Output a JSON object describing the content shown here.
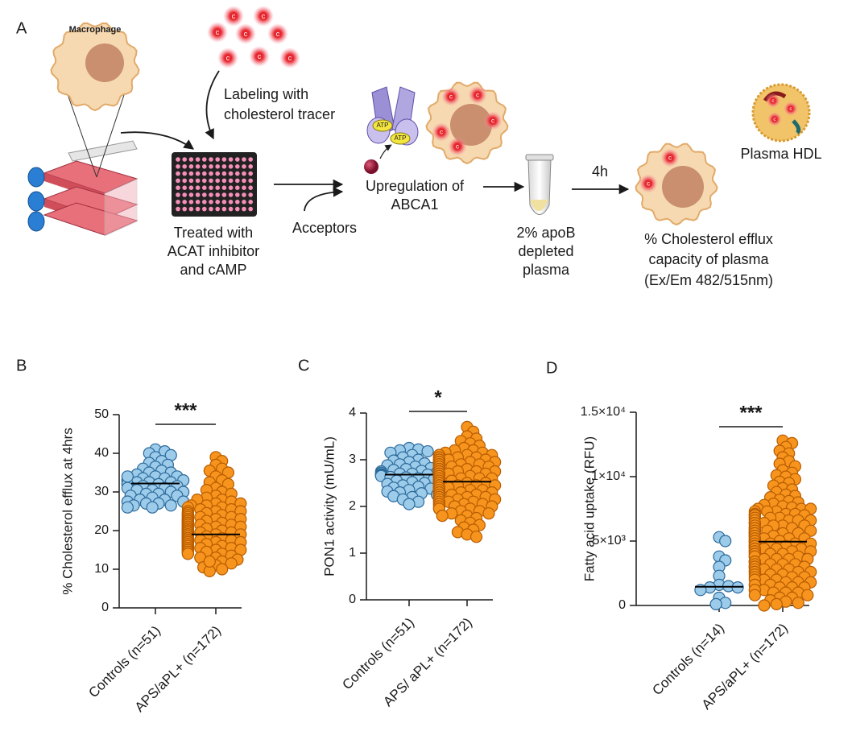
{
  "diagram": {
    "panel_label": "A",
    "macrophage": "Macrophage",
    "tracer_label": "c",
    "labeling": [
      "Labeling with",
      "cholesterol tracer"
    ],
    "treated": [
      "Treated with",
      "ACAT inhibitor",
      "and cAMP"
    ],
    "atp": "ATP",
    "upregulation": [
      "Upregulation of",
      "ABCA1"
    ],
    "acceptors": "Acceptors",
    "plasma": [
      "2% apoB",
      "depleted",
      "plasma"
    ],
    "time": "4h",
    "efflux": [
      "% Cholesterol efflux",
      "capacity of plasma",
      "(Ex/Em 482/515nm)"
    ],
    "hdl": "Plasma HDL"
  },
  "chart_data": [
    {
      "type": "dotplot",
      "panel_label": "B",
      "ylabel": "% Cholesterol efflux at 4hrs",
      "significance": "***",
      "categories": [
        "Controls (n=51)",
        "APS/aPL+ (n=172)"
      ],
      "groups": [
        {
          "color": "#9dcbea",
          "edge": "#2b6a9b",
          "median": 32.2,
          "values": [
            41,
            40.5,
            40,
            39.5,
            39,
            38,
            37.5,
            37,
            36.5,
            36,
            35.5,
            35,
            35,
            34.5,
            34,
            34,
            33.5,
            33.5,
            33,
            33,
            33,
            32.5,
            32.5,
            32.5,
            32,
            32,
            32,
            31.5,
            31.5,
            31,
            31,
            30.5,
            30.5,
            30,
            30,
            29.5,
            29.5,
            29,
            29,
            28.5,
            28,
            28,
            27.5,
            27.5,
            27,
            27,
            26.5,
            26.5,
            26,
            26,
            34
          ]
        },
        {
          "color": "#f7941d",
          "edge": "#b85c00",
          "median": 19,
          "values": [
            39,
            38,
            37,
            36,
            35.5,
            35,
            34,
            33,
            32.5,
            32,
            31,
            30.5,
            30,
            29.5,
            29,
            28.5,
            28,
            28,
            27.5,
            27,
            27,
            26.5,
            26.5,
            26,
            26,
            25.5,
            25.5,
            25,
            25,
            25,
            24.5,
            24.5,
            24.5,
            24,
            24,
            24,
            24,
            23.5,
            23.5,
            23.5,
            23.5,
            23,
            23,
            23,
            23,
            23,
            22.5,
            22.5,
            22.5,
            22.5,
            22.5,
            22,
            22,
            22,
            22,
            22,
            22,
            21.5,
            21.5,
            21.5,
            21.5,
            21.5,
            21.5,
            21,
            21,
            21,
            21,
            21,
            21,
            21,
            20.5,
            20.5,
            20.5,
            20.5,
            20.5,
            20.5,
            20.5,
            20,
            20,
            20,
            20,
            20,
            20,
            20,
            20,
            19.5,
            19.5,
            19.5,
            19.5,
            19.5,
            19.5,
            19.5,
            19.5,
            19,
            19,
            19,
            19,
            19,
            19,
            19,
            19,
            19,
            18.5,
            18.5,
            18.5,
            18.5,
            18.5,
            18.5,
            18.5,
            18.5,
            18,
            18,
            18,
            18,
            18,
            18,
            18,
            18,
            17.5,
            17.5,
            17.5,
            17.5,
            17.5,
            17.5,
            17.5,
            17,
            17,
            17,
            17,
            17,
            17,
            17,
            16.5,
            16.5,
            16.5,
            16.5,
            16.5,
            16.5,
            16,
            16,
            16,
            16,
            16,
            16,
            15.5,
            15.5,
            15.5,
            15.5,
            15.5,
            15,
            15,
            15,
            15,
            15,
            14.5,
            14.5,
            14.5,
            14.5,
            14,
            14,
            14,
            13.5,
            13,
            13,
            12.5,
            12,
            11.5,
            11,
            10.5,
            10,
            9.5,
            12
          ]
        }
      ],
      "ylim": [
        0,
        50
      ],
      "yticks": [
        0,
        10,
        20,
        30,
        40,
        50
      ]
    },
    {
      "type": "dotplot",
      "panel_label": "C",
      "ylabel": "PON1 activity (mU/mL)",
      "significance": "*",
      "categories": [
        "Controls (n=51)",
        "APS/ aPL+ (n=172)"
      ],
      "groups": [
        {
          "color": "#9dcbea",
          "edge": "#2b6a9b",
          "median": 2.68,
          "values": [
            3.25,
            3.22,
            3.2,
            3.18,
            3.15,
            3.1,
            3.05,
            3.0,
            2.98,
            2.95,
            2.92,
            2.9,
            2.88,
            2.85,
            2.82,
            2.8,
            2.78,
            2.76,
            2.75,
            2.73,
            2.72,
            2.7,
            2.7,
            2.69,
            2.68,
            2.68,
            2.67,
            2.66,
            2.65,
            2.63,
            2.62,
            2.6,
            2.58,
            2.55,
            2.52,
            2.5,
            2.48,
            2.45,
            2.42,
            2.4,
            2.38,
            2.35,
            2.32,
            2.3,
            2.28,
            2.25,
            2.22,
            2.2,
            2.15,
            2.1,
            2.05
          ]
        },
        {
          "color": "#f7941d",
          "edge": "#b85c00",
          "median": 2.53,
          "values": [
            3.7,
            3.6,
            3.5,
            3.45,
            3.4,
            3.35,
            3.3,
            3.25,
            3.2,
            3.2,
            3.15,
            3.15,
            3.1,
            3.1,
            3.1,
            3.1,
            3.1,
            3.05,
            3.05,
            3.05,
            3.05,
            3.05,
            3.0,
            3.0,
            3.0,
            3.0,
            3.0,
            3.0,
            2.95,
            2.95,
            2.95,
            2.95,
            2.95,
            2.95,
            2.9,
            2.9,
            2.9,
            2.9,
            2.9,
            2.9,
            2.9,
            2.85,
            2.85,
            2.85,
            2.85,
            2.85,
            2.85,
            2.85,
            2.8,
            2.8,
            2.8,
            2.8,
            2.8,
            2.8,
            2.8,
            2.75,
            2.75,
            2.75,
            2.75,
            2.75,
            2.75,
            2.75,
            2.75,
            2.7,
            2.7,
            2.7,
            2.7,
            2.7,
            2.7,
            2.7,
            2.7,
            2.65,
            2.65,
            2.65,
            2.65,
            2.65,
            2.65,
            2.65,
            2.65,
            2.6,
            2.6,
            2.6,
            2.6,
            2.6,
            2.6,
            2.6,
            2.6,
            2.55,
            2.55,
            2.55,
            2.55,
            2.55,
            2.55,
            2.55,
            2.55,
            2.5,
            2.5,
            2.5,
            2.5,
            2.5,
            2.5,
            2.5,
            2.45,
            2.45,
            2.45,
            2.45,
            2.45,
            2.45,
            2.45,
            2.4,
            2.4,
            2.4,
            2.4,
            2.4,
            2.4,
            2.4,
            2.35,
            2.35,
            2.35,
            2.35,
            2.35,
            2.35,
            2.3,
            2.3,
            2.3,
            2.3,
            2.3,
            2.3,
            2.25,
            2.25,
            2.25,
            2.25,
            2.25,
            2.2,
            2.2,
            2.2,
            2.2,
            2.2,
            2.15,
            2.15,
            2.15,
            2.15,
            2.15,
            2.1,
            2.1,
            2.1,
            2.1,
            2.05,
            2.05,
            2.05,
            2.05,
            2.0,
            2.0,
            2.0,
            1.95,
            1.95,
            1.95,
            1.9,
            1.9,
            1.85,
            1.85,
            1.8,
            1.8,
            1.75,
            1.7,
            1.65,
            1.6,
            1.55,
            1.5,
            1.45,
            1.4,
            1.35
          ]
        }
      ],
      "ylim": [
        0,
        4
      ],
      "yticks": [
        0,
        1,
        2,
        3,
        4
      ]
    },
    {
      "type": "dotplot",
      "panel_label": "D",
      "ylabel": "Fatty acid uptake (RFU)",
      "significance": "***",
      "categories": [
        "Controls (n=14)",
        "APS/aPL+ (n=172)"
      ],
      "groups": [
        {
          "color": "#9dcbea",
          "edge": "#2b6a9b",
          "median": 1450,
          "values": [
            5300,
            5000,
            3800,
            3500,
            3000,
            2300,
            1600,
            1500,
            1400,
            1200,
            600,
            200,
            100,
            1400
          ]
        },
        {
          "color": "#f7941d",
          "edge": "#b85c00",
          "median": 4950,
          "values": [
            12800,
            12600,
            12300,
            12000,
            11800,
            11500,
            11200,
            11000,
            10800,
            10500,
            10300,
            10100,
            10000,
            9800,
            9600,
            9500,
            9300,
            9100,
            9000,
            8800,
            8600,
            8500,
            8400,
            8200,
            8100,
            8000,
            7900,
            7800,
            7700,
            7600,
            7500,
            7500,
            7500,
            7300,
            7300,
            7300,
            7100,
            7100,
            7100,
            7000,
            7000,
            7000,
            6800,
            6800,
            6800,
            6800,
            6600,
            6600,
            6600,
            6600,
            6400,
            6400,
            6400,
            6400,
            6200,
            6200,
            6200,
            6200,
            6000,
            6000,
            6000,
            6000,
            5800,
            5800,
            5800,
            5800,
            5800,
            5600,
            5600,
            5600,
            5600,
            5600,
            5400,
            5400,
            5400,
            5400,
            5400,
            5200,
            5200,
            5200,
            5200,
            5200,
            5000,
            5000,
            5000,
            5000,
            5000,
            4800,
            4800,
            4800,
            4800,
            4800,
            4600,
            4600,
            4600,
            4600,
            4600,
            4400,
            4400,
            4400,
            4400,
            4400,
            4200,
            4200,
            4200,
            4200,
            4200,
            4000,
            4000,
            4000,
            4000,
            3800,
            3800,
            3800,
            3800,
            3600,
            3600,
            3600,
            3600,
            3400,
            3400,
            3400,
            3400,
            3200,
            3200,
            3200,
            3200,
            3000,
            3000,
            3000,
            3000,
            2800,
            2800,
            2800,
            2800,
            2600,
            2600,
            2600,
            2600,
            2400,
            2400,
            2400,
            2200,
            2200,
            2200,
            2000,
            2000,
            2000,
            1800,
            1800,
            1800,
            1600,
            1600,
            1600,
            1400,
            1400,
            1400,
            1200,
            1200,
            1200,
            1000,
            1000,
            1000,
            800,
            800,
            600,
            600,
            400,
            300,
            100,
            0,
            200
          ]
        }
      ],
      "ylim": [
        0,
        15000
      ],
      "yticks": [
        0,
        {
          "value": 5000,
          "label": "5×10³"
        },
        {
          "value": 10000,
          "label": "1×10⁴"
        },
        {
          "value": 15000,
          "label": "1.5×10⁴"
        }
      ]
    }
  ]
}
